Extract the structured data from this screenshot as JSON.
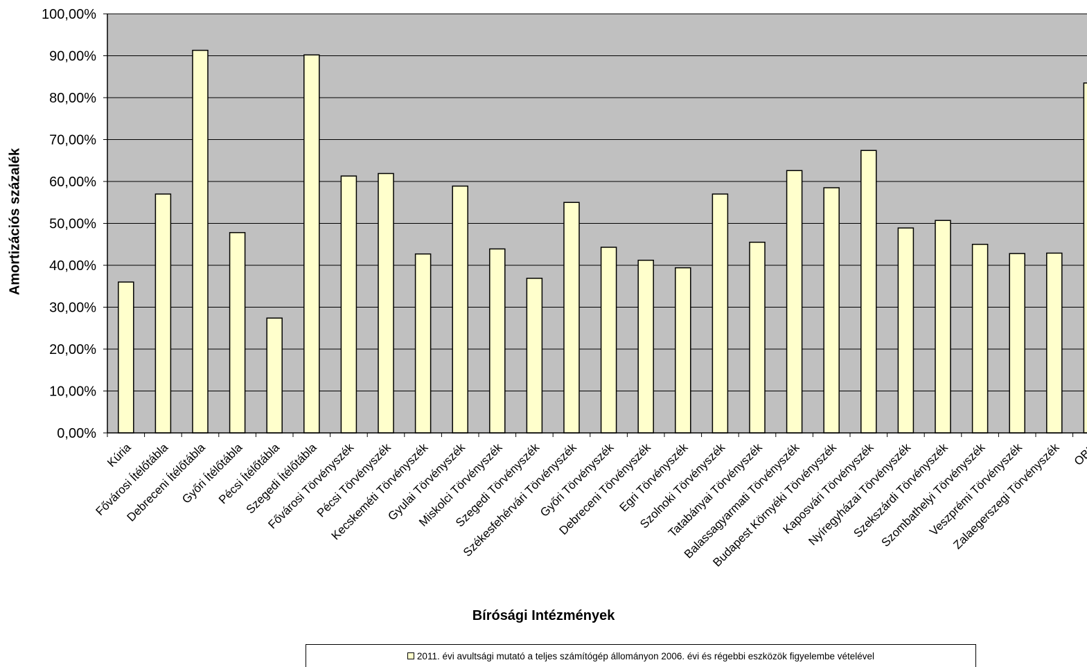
{
  "chart_data": {
    "type": "bar",
    "xlabel": "Bírósági Intézmények",
    "ylabel": "Amortizációs százalék",
    "ylim": [
      0,
      100
    ],
    "yticks": [
      "0,00%",
      "10,00%",
      "20,00%",
      "30,00%",
      "40,00%",
      "50,00%",
      "60,00%",
      "70,00%",
      "80,00%",
      "90,00%",
      "100,00%"
    ],
    "grid": true,
    "plot_background": "#c0c0c0",
    "bar_color": "#ffffcc",
    "legend_position": "bottom",
    "categories": [
      "Kúria",
      "Fővárosi Ítélőtábla",
      "Debreceni Ítélőtábla",
      "Győri Ítélőtábla",
      "Pécsi Ítélőtábla",
      "Szegedi Ítélőtábla",
      "Fővárosi Törvényszék",
      "Pécsi Törvényszék",
      "Kecskeméti Törvényszék",
      "Gyulai Törvényszék",
      "Miskolci Törvényszék",
      "Szegedi Törvényszék",
      "Székesfehérvári Törvényszék",
      "Győri Törvényszék",
      "Debreceni Törvényszék",
      "Egri Törvényszék",
      "Szolnoki Törvényszék",
      "Tatabányai Törvényszék",
      "Balassagyarmati Törvényszék",
      "Budapest Környéki Törvényszék",
      "Kaposvári Törvényszék",
      "Nyíregyházai Törvényszék",
      "Szekszárdi Törvényszék",
      "Szombathelyi Törvényszék",
      "Veszprémi Törvényszék",
      "Zalaegerszegi Törvényszék",
      "OBH"
    ],
    "series": [
      {
        "name": "2011. évi avultsági mutató a teljes számítógép állományon 2006. évi és régebbi eszközök figyelembe vételével",
        "values": [
          36.0,
          57.0,
          91.3,
          47.8,
          27.4,
          90.2,
          61.3,
          61.9,
          42.7,
          58.9,
          43.9,
          36.9,
          55.0,
          44.3,
          41.2,
          39.4,
          57.0,
          45.5,
          62.6,
          58.5,
          67.4,
          48.9,
          50.7,
          45.0,
          42.8,
          42.9,
          83.5
        ]
      }
    ]
  }
}
